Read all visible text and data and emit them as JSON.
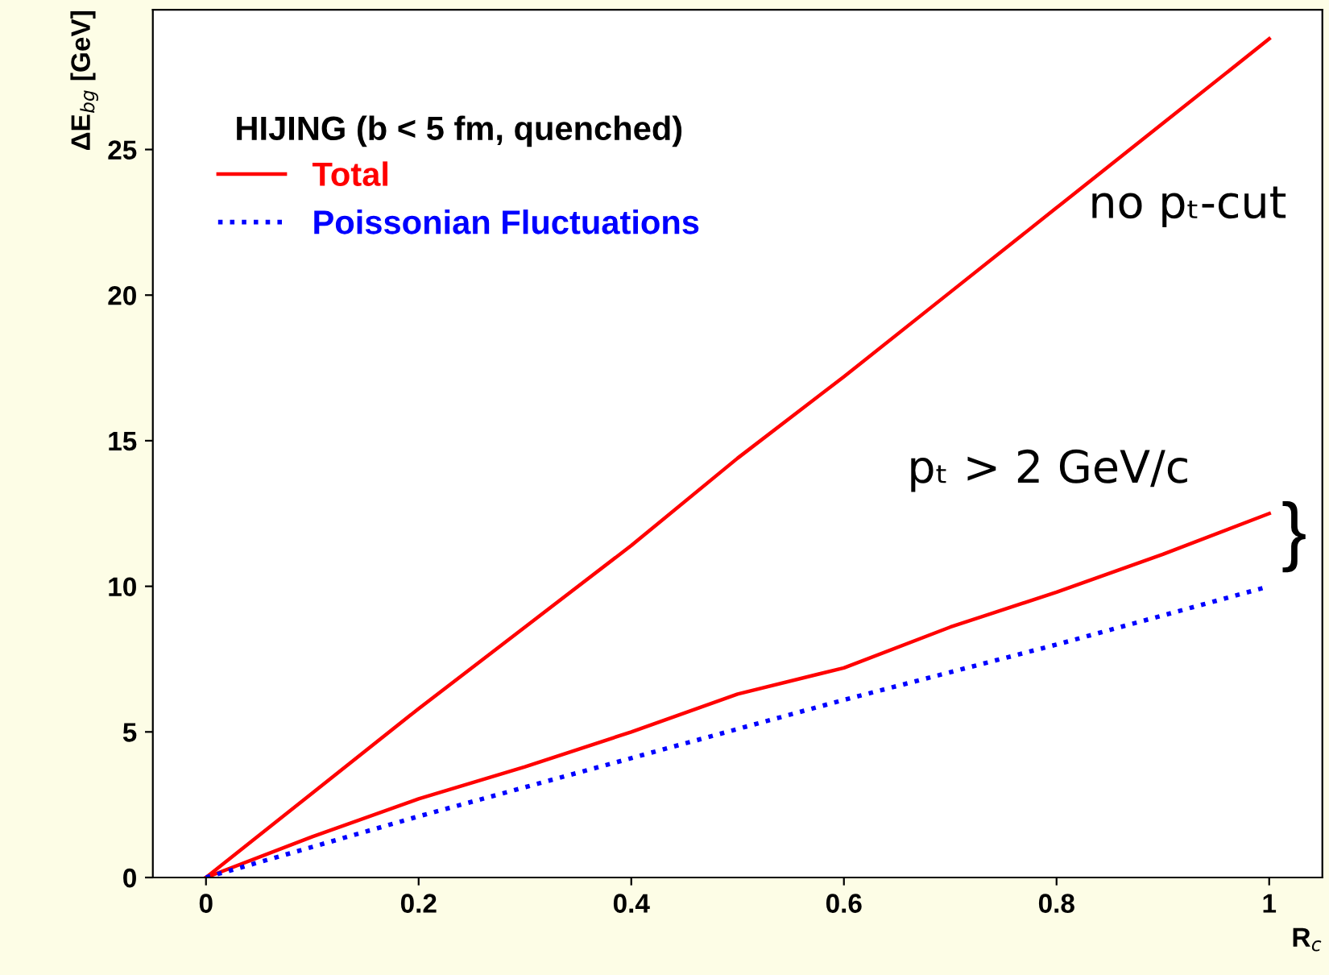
{
  "chart_data": {
    "type": "line",
    "xlabel": "R$_{c}$",
    "ylabel": "ΔE$_{bg}$ [GeV]",
    "xlim": [
      -0.05,
      1.05
    ],
    "ylim": [
      0,
      29.8
    ],
    "xticks": [
      0,
      0.2,
      0.4,
      0.6,
      0.8,
      1
    ],
    "yticks": [
      0,
      5,
      10,
      15,
      20,
      25
    ],
    "grid": false,
    "legend": "top left",
    "line_style": "solid",
    "marker": "none",
    "series": [
      {
        "color": "#ff0000",
        "x": [
          0,
          0.1,
          0.2,
          0.3,
          0.4,
          0.5,
          0.6,
          0.7,
          0.8,
          0.9,
          1.0
        ],
        "values": [
          0,
          2.9,
          5.8,
          8.6,
          11.4,
          14.4,
          17.2,
          20.1,
          23.0,
          25.9,
          28.8
        ]
      },
      {
        "name": "Total",
        "color": "#ff0000",
        "x": [
          0,
          0.1,
          0.2,
          0.3,
          0.4,
          0.5,
          0.6,
          0.7,
          0.8,
          0.9,
          1.0
        ],
        "values": [
          0,
          1.4,
          2.7,
          3.8,
          5.0,
          6.3,
          7.2,
          8.6,
          9.8,
          11.1,
          12.5
        ]
      },
      {
        "name": "Poissonian Fluctuations",
        "color": "#0000ff",
        "line_style": "dotted",
        "x": [
          0,
          0.2,
          0.4,
          0.6,
          0.8,
          1.0
        ],
        "values": [
          0,
          2.1,
          4.1,
          6.1,
          8.0,
          10.0
        ]
      }
    ],
    "annotations": [
      "HIJING (b < 5 fm, quenched)",
      "no pₜ-cut",
      "pₜ > 2 GeV/c",
      "}"
    ]
  }
}
